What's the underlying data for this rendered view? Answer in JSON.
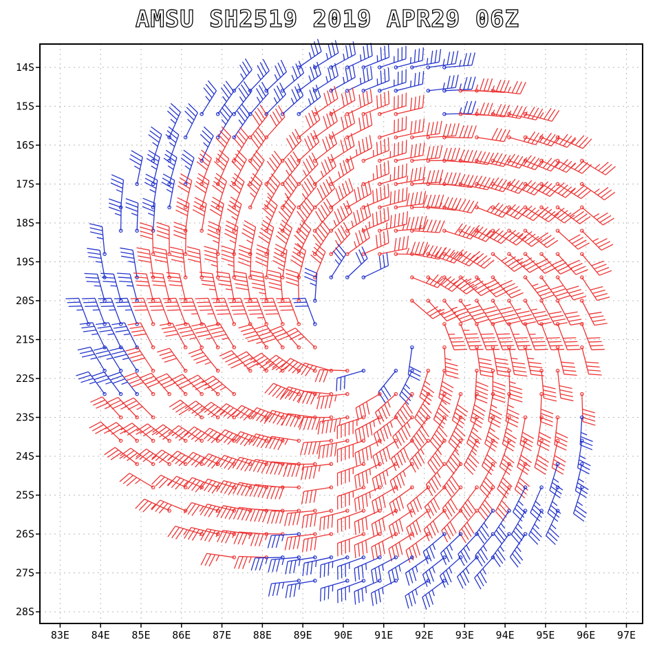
{
  "title": "AMSU SH2519 2019 APR29 06Z",
  "map": {
    "lon_range": [
      82.5,
      97.4
    ],
    "lat_range": [
      -28.3,
      -13.4
    ],
    "lon_ticks": [
      {
        "value": 83,
        "label": "83E"
      },
      {
        "value": 84,
        "label": "84E"
      },
      {
        "value": 85,
        "label": "85E"
      },
      {
        "value": 86,
        "label": "86E"
      },
      {
        "value": 87,
        "label": "87E"
      },
      {
        "value": 88,
        "label": "88E"
      },
      {
        "value": 89,
        "label": "89E"
      },
      {
        "value": 90,
        "label": "90E"
      },
      {
        "value": 91,
        "label": "91E"
      },
      {
        "value": 92,
        "label": "92E"
      },
      {
        "value": 93,
        "label": "93E"
      },
      {
        "value": 94,
        "label": "94E"
      },
      {
        "value": 95,
        "label": "95E"
      },
      {
        "value": 96,
        "label": "96E"
      },
      {
        "value": 97,
        "label": "97E"
      }
    ],
    "lat_ticks": [
      {
        "value": -14,
        "label": "14S"
      },
      {
        "value": -15,
        "label": "15S"
      },
      {
        "value": -16,
        "label": "16S"
      },
      {
        "value": -17,
        "label": "17S"
      },
      {
        "value": -18,
        "label": "18S"
      },
      {
        "value": -19,
        "label": "19S"
      },
      {
        "value": -20,
        "label": "20S"
      },
      {
        "value": -21,
        "label": "21S"
      },
      {
        "value": -22,
        "label": "22S"
      },
      {
        "value": -23,
        "label": "23S"
      },
      {
        "value": -24,
        "label": "24S"
      },
      {
        "value": -25,
        "label": "25S"
      },
      {
        "value": -26,
        "label": "26S"
      },
      {
        "value": -27,
        "label": "27S"
      },
      {
        "value": -28,
        "label": "28S"
      }
    ],
    "grid": "dotted",
    "colors": {
      "frame": "#000000",
      "grid": "#b8b8b8",
      "blue": "#2233cc",
      "red": "#ee3333"
    }
  },
  "center": {
    "lon": 90.6,
    "lat": -20.6
  },
  "wind_barbs": {
    "cold_color": "#2233cc",
    "warm_color": "#ee3333",
    "threshold_kt": 48,
    "lons": [
      82.9,
      83.3,
      83.7,
      84.1,
      84.5,
      84.9,
      85.3,
      85.7,
      86.1,
      86.5,
      86.9,
      87.3,
      87.7,
      88.1,
      88.5,
      88.9,
      89.3,
      89.7,
      90.1,
      90.5,
      90.9,
      91.3,
      91.7,
      92.1,
      92.5,
      92.9,
      93.3,
      93.7,
      94.1,
      94.5,
      94.9,
      95.3,
      95.9
    ],
    "lats": [
      -14.0,
      -14.6,
      -15.2,
      -15.8,
      -16.4,
      -17.0,
      -17.6,
      -18.2,
      -18.8,
      -19.4,
      -20.0,
      -20.6,
      -21.2,
      -21.8,
      -22.4,
      -23.0,
      -23.6,
      -24.2,
      -24.8,
      -25.4,
      -26.0,
      -26.6,
      -27.2,
      -27.8
    ],
    "max_wind_kt": 55,
    "rmw_deg": 2.4,
    "warm_sector_bearings": [
      [
        20,
        110
      ],
      [
        200,
        250
      ]
    ],
    "eye_radius_deg": 1.2,
    "outer_radius_deg": 6.9
  }
}
